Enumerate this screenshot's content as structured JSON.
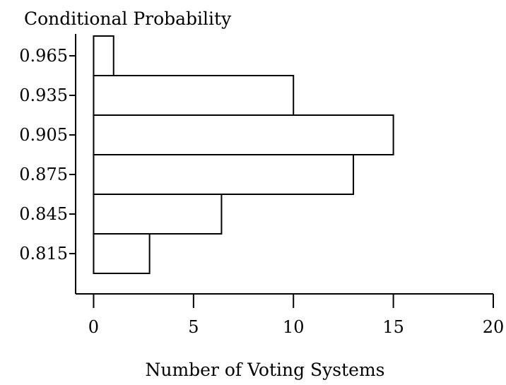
{
  "chart_data": {
    "type": "bar",
    "orientation": "horizontal",
    "title": "Conditional Probability",
    "xlabel": "Number of Voting Systems",
    "ylabel": "",
    "categories": [
      "0.965",
      "0.935",
      "0.905",
      "0.875",
      "0.845",
      "0.815"
    ],
    "values": [
      1,
      10,
      15,
      13,
      6.4,
      2.8
    ],
    "xlim": [
      -0.9,
      20
    ],
    "xticks": [
      "0",
      "5",
      "10",
      "15",
      "20"
    ],
    "grid": false,
    "legend": "none",
    "bar_fill": "#ffffff",
    "line_color": "#000000"
  }
}
